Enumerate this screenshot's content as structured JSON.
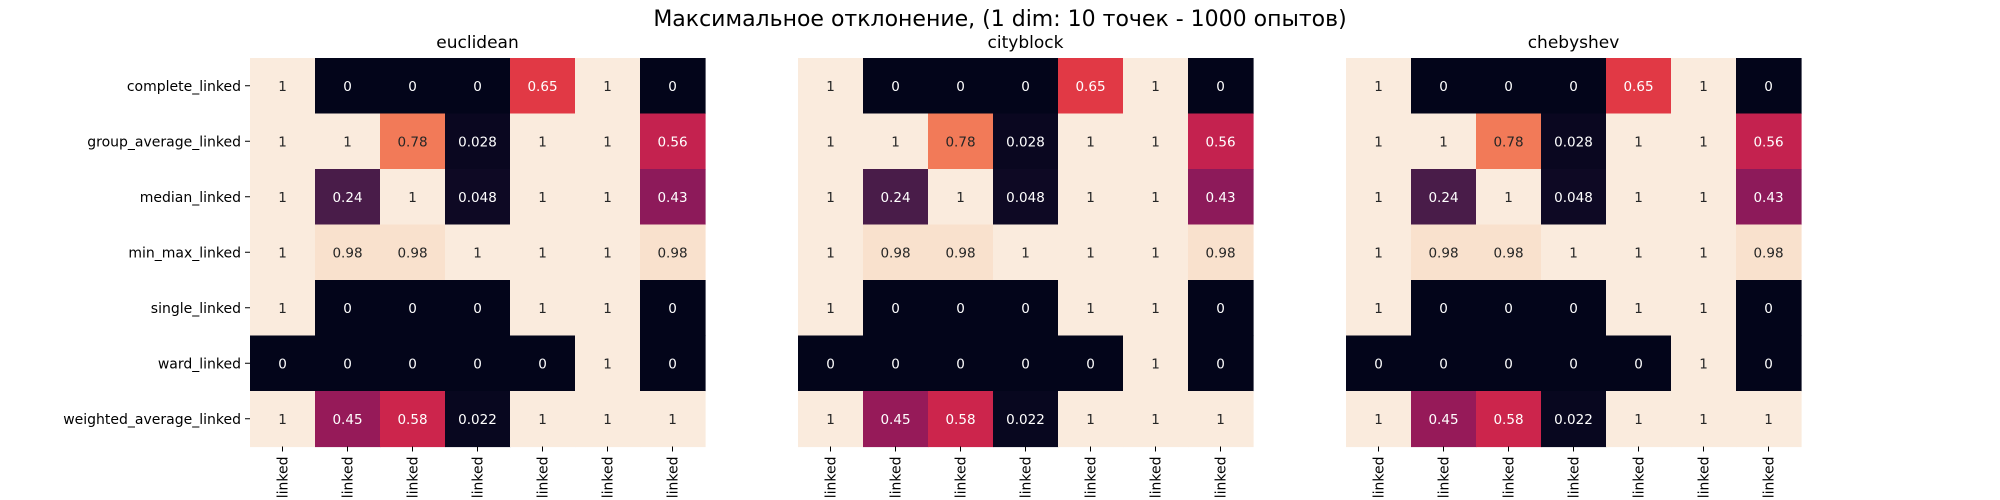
{
  "figure": {
    "suptitle": "Максимальное отклонение, (1 dim: 10 точек - 1000 опытов)"
  },
  "chart_data": {
    "type": "heatmap",
    "colormap": "rocket",
    "vmin": 0,
    "vmax": 1,
    "rows": [
      "complete_linked",
      "group_average_linked",
      "median_linked",
      "min_max_linked",
      "single_linked",
      "ward_linked",
      "weighted_average_linked"
    ],
    "column_labels_visible": [
      "linked",
      "linked",
      "linked",
      "linked",
      "linked",
      "linked",
      "linked"
    ],
    "panels": [
      {
        "title": "euclidean",
        "values": [
          [
            1,
            0,
            0,
            0,
            0.65,
            1,
            0
          ],
          [
            1,
            1,
            0.78,
            0.028,
            1,
            1,
            0.56
          ],
          [
            1,
            0.24,
            1,
            0.048,
            1,
            1,
            0.43
          ],
          [
            1,
            0.98,
            0.98,
            1,
            1,
            1,
            0.98
          ],
          [
            1,
            0,
            0,
            0,
            1,
            1,
            0
          ],
          [
            0,
            0,
            0,
            0,
            0,
            1,
            0
          ],
          [
            1,
            0.45,
            0.58,
            0.022,
            1,
            1,
            1
          ]
        ]
      },
      {
        "title": "cityblock",
        "values": [
          [
            1,
            0,
            0,
            0,
            0.65,
            1,
            0
          ],
          [
            1,
            1,
            0.78,
            0.028,
            1,
            1,
            0.56
          ],
          [
            1,
            0.24,
            1,
            0.048,
            1,
            1,
            0.43
          ],
          [
            1,
            0.98,
            0.98,
            1,
            1,
            1,
            0.98
          ],
          [
            1,
            0,
            0,
            0,
            1,
            1,
            0
          ],
          [
            0,
            0,
            0,
            0,
            0,
            1,
            0
          ],
          [
            1,
            0.45,
            0.58,
            0.022,
            1,
            1,
            1
          ]
        ]
      },
      {
        "title": "chebyshev",
        "values": [
          [
            1,
            0,
            0,
            0,
            0.65,
            1,
            0
          ],
          [
            1,
            1,
            0.78,
            0.028,
            1,
            1,
            0.56
          ],
          [
            1,
            0.24,
            1,
            0.048,
            1,
            1,
            0.43
          ],
          [
            1,
            0.98,
            0.98,
            1,
            1,
            1,
            0.98
          ],
          [
            1,
            0,
            0,
            0,
            1,
            1,
            0
          ],
          [
            0,
            0,
            0,
            0,
            0,
            1,
            0
          ],
          [
            1,
            0.45,
            0.58,
            0.022,
            1,
            1,
            1
          ]
        ]
      }
    ]
  }
}
